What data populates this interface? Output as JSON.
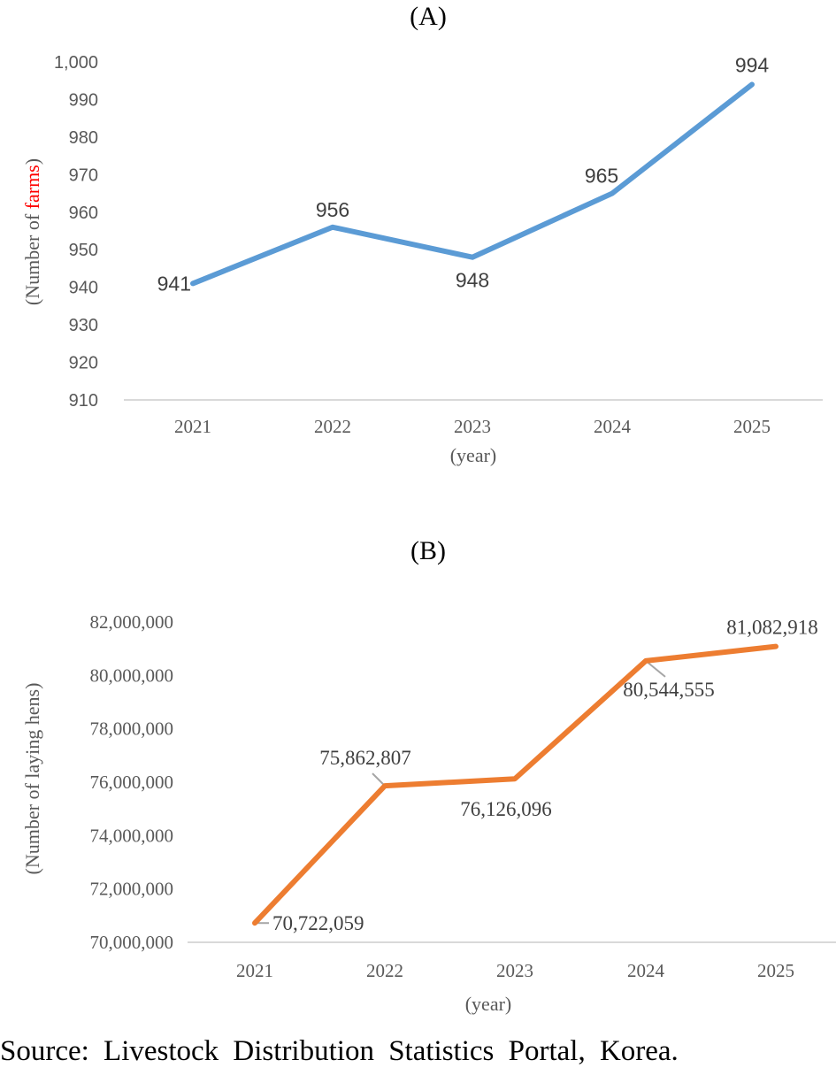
{
  "chart_data": [
    {
      "type": "line",
      "title": "(A)",
      "xlabel": "(year)",
      "ylabel_parts": [
        "(Number of ",
        "farms",
        ")"
      ],
      "ylabel_highlight_color": "#ff0000",
      "categories": [
        "2021",
        "2022",
        "2023",
        "2024",
        "2025"
      ],
      "values": [
        941,
        956,
        948,
        965,
        994
      ],
      "data_labels": [
        "941",
        "956",
        "948",
        "965",
        "994"
      ],
      "ylim": [
        910,
        1000
      ],
      "yticks": [
        910,
        920,
        930,
        940,
        950,
        960,
        970,
        980,
        990,
        1000
      ],
      "ytick_labels": [
        "910",
        "920",
        "930",
        "940",
        "950",
        "960",
        "970",
        "980",
        "990",
        "1,000"
      ],
      "grid": false,
      "line_color": "#5b9bd5"
    },
    {
      "type": "line",
      "title": "(B)",
      "xlabel": "(year)",
      "ylabel": "(Number of laying hens)",
      "categories": [
        "2021",
        "2022",
        "2023",
        "2024",
        "2025"
      ],
      "values": [
        70722059,
        75862807,
        76126096,
        80544555,
        81082918
      ],
      "data_labels": [
        "70,722,059",
        "75,862,807",
        "76,126,096",
        "80,544,555",
        "81,082,918"
      ],
      "ylim": [
        70000000,
        82000000
      ],
      "yticks": [
        70000000,
        72000000,
        74000000,
        76000000,
        78000000,
        80000000,
        82000000
      ],
      "ytick_labels": [
        "70,000,000",
        "72,000,000",
        "74,000,000",
        "76,000,000",
        "78,000,000",
        "80,000,000",
        "82,000,000"
      ],
      "grid": false,
      "line_color": "#ed7d31"
    }
  ],
  "source": "Source: Livestock Distribution Statistics Portal, Korea."
}
